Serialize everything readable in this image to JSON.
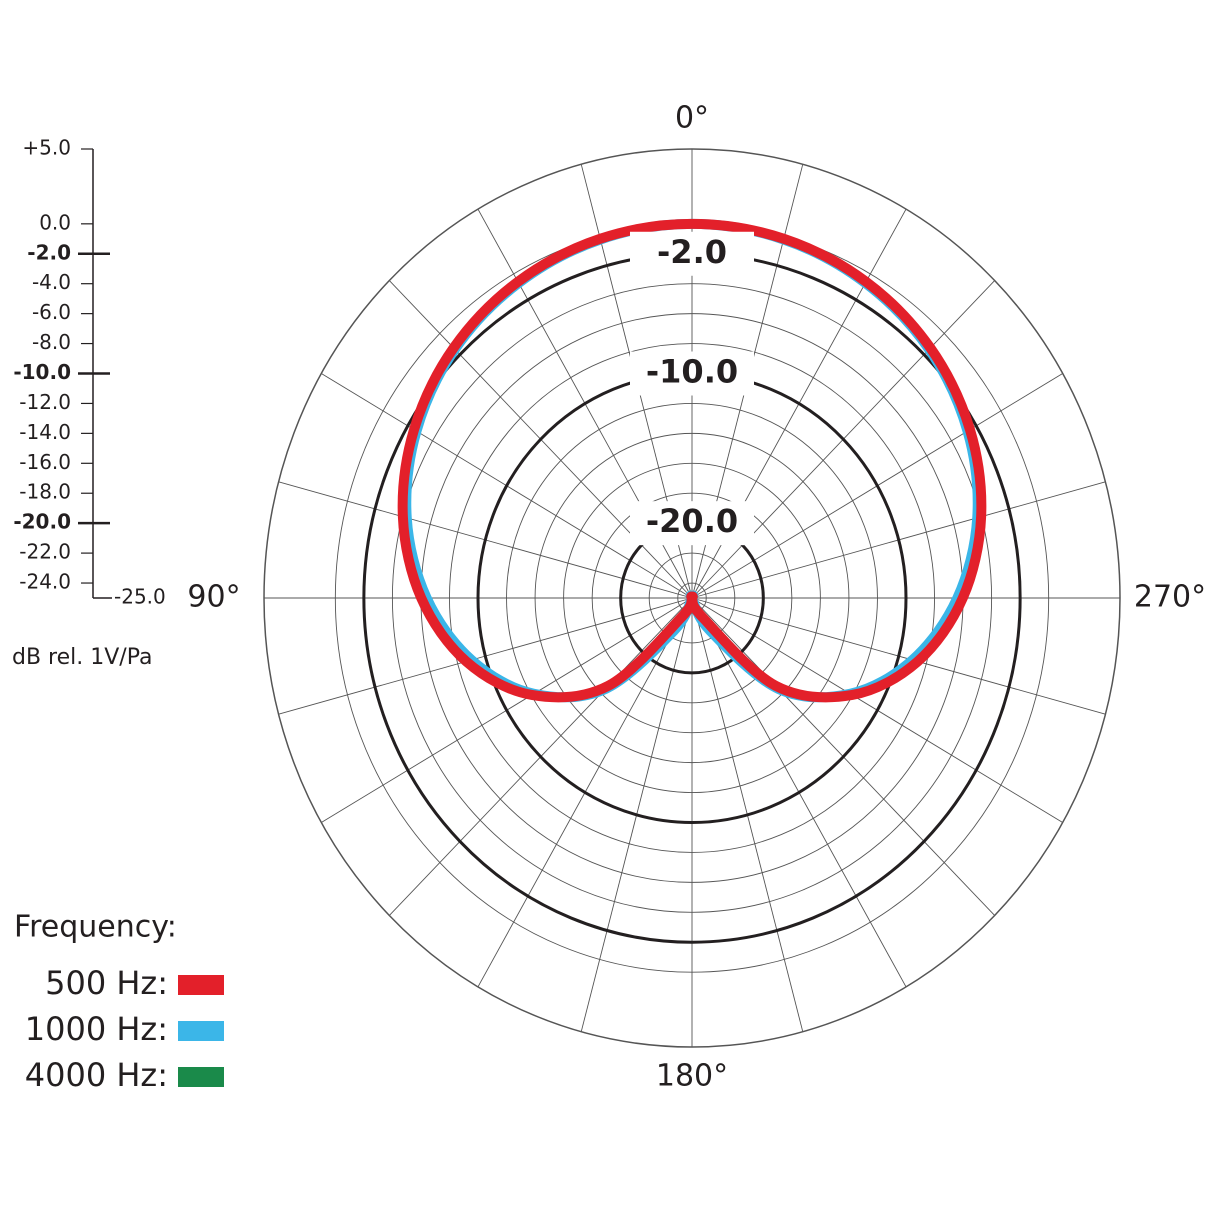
{
  "chart_data": {
    "type": "polar",
    "theta": [
      0,
      15,
      30,
      45,
      60,
      75,
      90,
      105,
      120,
      135,
      150,
      165,
      180,
      195,
      210,
      225,
      240,
      255,
      270,
      285,
      300,
      315,
      330,
      345
    ],
    "thetaticks": [
      {
        "value": 0,
        "label": "0°"
      },
      {
        "value": 90,
        "label": "90°"
      },
      {
        "value": 180,
        "label": "180°"
      },
      {
        "value": 270,
        "label": "270°"
      }
    ],
    "ylim": [
      -25,
      5
    ],
    "yticks": [
      {
        "value": 5,
        "label": "+5.0"
      },
      {
        "value": 0,
        "label": "0.0"
      },
      {
        "value": -2,
        "label": "-2.0"
      },
      {
        "value": -4,
        "label": "-4.0"
      },
      {
        "value": -6,
        "label": "-6.0"
      },
      {
        "value": -8,
        "label": "-8.0"
      },
      {
        "value": -10,
        "label": "-10.0"
      },
      {
        "value": -12,
        "label": "-12.0"
      },
      {
        "value": -14,
        "label": "-14.0"
      },
      {
        "value": -16,
        "label": "-16.0"
      },
      {
        "value": -18,
        "label": "-18.0"
      },
      {
        "value": -20,
        "label": "-20.0"
      },
      {
        "value": -22,
        "label": "-22.0"
      },
      {
        "value": -24,
        "label": "-24.0"
      },
      {
        "value": -25,
        "label": "-25.0"
      }
    ],
    "major_yticks": [
      -2,
      -10,
      -20
    ],
    "y_label": "dB rel. 1V/Pa",
    "legend_title": "Frequency:",
    "series": [
      {
        "name": "500 Hz:",
        "color": "#e3202a",
        "values": [
          0,
          -0.15,
          -0.6,
          -1.37,
          -2.5,
          -4.02,
          -6.02,
          -8.62,
          -12.04,
          -16.7,
          -23.5,
          -25,
          -25,
          -25,
          -23.5,
          -16.7,
          -12.04,
          -8.62,
          -6.02,
          -4.02,
          -2.5,
          -1.37,
          -0.6,
          -0.15
        ]
      },
      {
        "name": "1000 Hz:",
        "color": "#3bb6e8",
        "values": [
          0,
          -0.2,
          -0.7,
          -1.5,
          -2.7,
          -4.3,
          -6.4,
          -9,
          -12.2,
          -16.4,
          -22.5,
          -25,
          -25,
          -25,
          -22.5,
          -16.4,
          -12.2,
          -9,
          -6.4,
          -4.3,
          -2.7,
          -1.5,
          -0.7,
          -0.2
        ]
      },
      {
        "name": "4000 Hz:",
        "color": "#1a8a4a",
        "values": [
          0.1,
          -0.1,
          -0.55,
          -1.3,
          -2.5,
          -4.1,
          -6.2,
          -8.8,
          -12.3,
          -17,
          -23.8,
          -25,
          -25,
          -25,
          -23.8,
          -17,
          -12.3,
          -8.8,
          -6.2,
          -4.1,
          -2.5,
          -1.3,
          -0.55,
          -0.1
        ]
      }
    ]
  }
}
